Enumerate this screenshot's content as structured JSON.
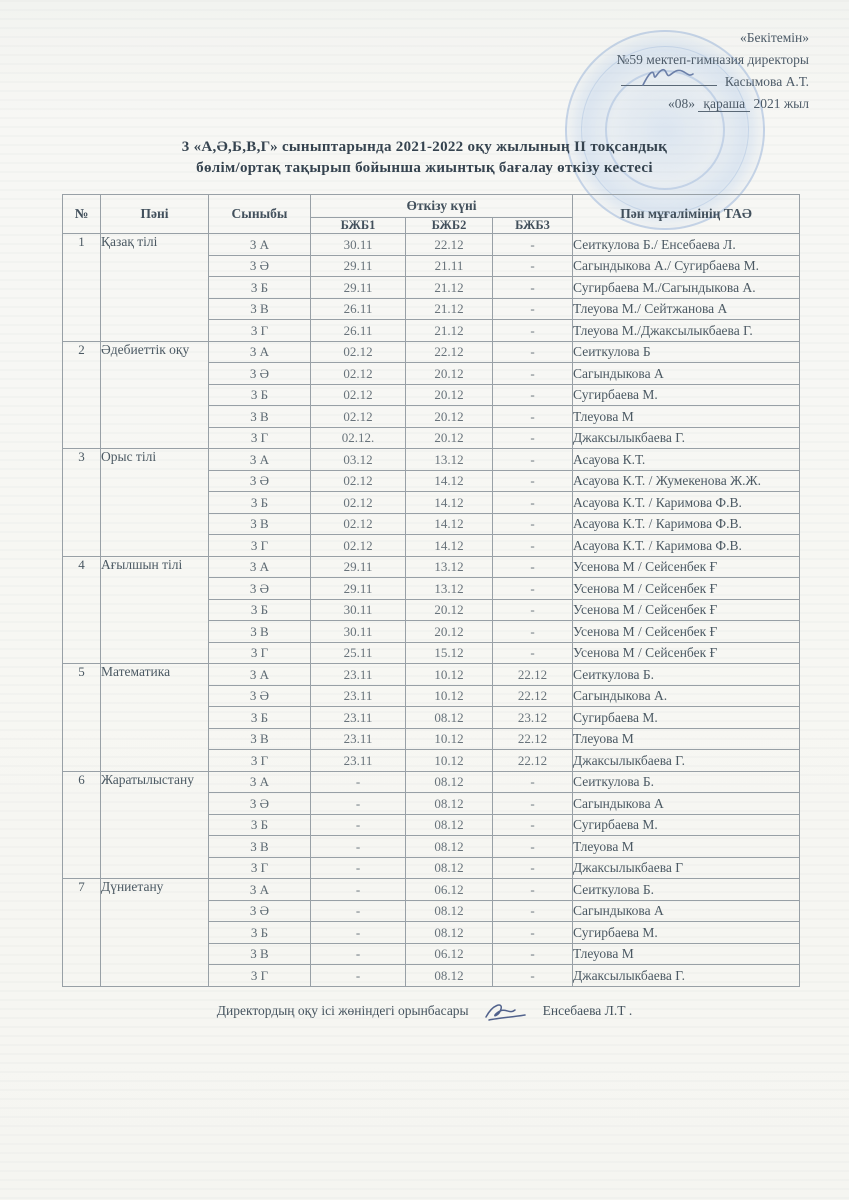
{
  "approval": {
    "line1": "«Бекітемін»",
    "line2": "№59 мектеп-гимназия директоры",
    "director_name": "Касымова А.Т.",
    "date_day": "«08»",
    "date_month": "қараша",
    "date_year": "2021 жыл"
  },
  "title": {
    "line1": "3 «А,Ә,Б,В,Г»  сыныптарында 2021-2022 оқу жылының II тоқсандық",
    "line2": "бөлім/ортақ тақырып бойынша жиынтық бағалау өткізу кестесі"
  },
  "icons": {
    "director_signature": "signature-scribble",
    "deputy_signature": "signature-scribble",
    "stamp": "round-school-stamp"
  },
  "colors": {
    "stamp_blue": "#7c9ed0",
    "ink": "#47545e",
    "border": "#98a0a6"
  },
  "table": {
    "headers": {
      "num": "№",
      "subject": "Пәні",
      "class": "Сыныбы",
      "date_group": "Өткізу күні",
      "bzb1": "БЖБ1",
      "bzb2": "БЖБ2",
      "bzb3": "БЖБ3",
      "teacher": "Пән мұғалімінің ТАӘ"
    },
    "sections": [
      {
        "num": "1",
        "subject": "Қазақ тілі",
        "rows": [
          {
            "class": "3 А",
            "b1": "30.11",
            "b2": "22.12",
            "b3": "-",
            "teacher": "Сеиткулова Б./ Енсебаева Л."
          },
          {
            "class": "3 Ә",
            "b1": "29.11",
            "b2": "21.11",
            "b3": "-",
            "teacher": "Сагындыкова А./ Сугирбаева М."
          },
          {
            "class": "3 Б",
            "b1": "29.11",
            "b2": "21.12",
            "b3": "-",
            "teacher": "Сугирбаева М./Сагындыкова А."
          },
          {
            "class": "3 В",
            "b1": "26.11",
            "b2": "21.12",
            "b3": "-",
            "teacher": "Тлеуова М./ Сейтжанова А"
          },
          {
            "class": "3 Г",
            "b1": "26.11",
            "b2": "21.12",
            "b3": "-",
            "teacher": "Тлеуова М./Джаксылыкбаева Г."
          }
        ]
      },
      {
        "num": "2",
        "subject": "Әдебиеттік оқу",
        "rows": [
          {
            "class": "3 А",
            "b1": "02.12",
            "b2": "22.12",
            "b3": "-",
            "teacher": "Сеиткулова Б"
          },
          {
            "class": "3 Ә",
            "b1": "02.12",
            "b2": "20.12",
            "b3": "-",
            "teacher": "Сагындыкова А"
          },
          {
            "class": "3 Б",
            "b1": "02.12",
            "b2": "20.12",
            "b3": "-",
            "teacher": "Сугирбаева М."
          },
          {
            "class": "3 В",
            "b1": "02.12",
            "b2": "20.12",
            "b3": "-",
            "teacher": "Тлеуова М"
          },
          {
            "class": "3 Г",
            "b1": "02.12.",
            "b2": "20.12",
            "b3": "-",
            "teacher": "Джаксылыкбаева Г."
          }
        ]
      },
      {
        "num": "3",
        "subject": "Орыс тілі",
        "rows": [
          {
            "class": "3 А",
            "b1": "03.12",
            "b2": "13.12",
            "b3": "-",
            "teacher": "Асауова К.Т."
          },
          {
            "class": "3 Ә",
            "b1": "02.12",
            "b2": "14.12",
            "b3": "-",
            "teacher": "Асауова К.Т. / Жумекенова Ж.Ж."
          },
          {
            "class": "3 Б",
            "b1": "02.12",
            "b2": "14.12",
            "b3": "-",
            "teacher": "Асауова К.Т. /  Каримова Ф.В."
          },
          {
            "class": "3 В",
            "b1": "02.12",
            "b2": "14.12",
            "b3": "-",
            "teacher": "Асауова К.Т. /  Каримова Ф.В."
          },
          {
            "class": "3 Г",
            "b1": "02.12",
            "b2": "14.12",
            "b3": "-",
            "teacher": "Асауова К.Т. /  Каримова Ф.В."
          }
        ]
      },
      {
        "num": "4",
        "subject": "Ағылшын тілі",
        "rows": [
          {
            "class": "3 А",
            "b1": "29.11",
            "b2": "13.12",
            "b3": "-",
            "teacher": "Усенова М   /  Сейсенбек Ғ"
          },
          {
            "class": "3 Ә",
            "b1": "29.11",
            "b2": "13.12",
            "b3": "-",
            "teacher": "Усенова М   /  Сейсенбек Ғ"
          },
          {
            "class": "3 Б",
            "b1": "30.11",
            "b2": "20.12",
            "b3": "-",
            "teacher": "Усенова М   /  Сейсенбек Ғ"
          },
          {
            "class": "3 В",
            "b1": "30.11",
            "b2": "20.12",
            "b3": "-",
            "teacher": "Усенова М   /  Сейсенбек Ғ"
          },
          {
            "class": "3 Г",
            "b1": "25.11",
            "b2": "15.12",
            "b3": "-",
            "teacher": "Усенова М   /  Сейсенбек Ғ"
          }
        ]
      },
      {
        "num": "5",
        "subject": "Математика",
        "rows": [
          {
            "class": "3 А",
            "b1": "23.11",
            "b2": "10.12",
            "b3": "22.12",
            "teacher": "Сеиткулова Б."
          },
          {
            "class": "3 Ә",
            "b1": "23.11",
            "b2": "10.12",
            "b3": "22.12",
            "teacher": "Сагындыкова А."
          },
          {
            "class": "3 Б",
            "b1": "23.11",
            "b2": "08.12",
            "b3": "23.12",
            "teacher": "Сугирбаева М."
          },
          {
            "class": "3 В",
            "b1": "23.11",
            "b2": "10.12",
            "b3": "22.12",
            "teacher": "Тлеуова М"
          },
          {
            "class": "3 Г",
            "b1": "23.11",
            "b2": "10.12",
            "b3": "22.12",
            "teacher": "Джаксылыкбаева Г."
          }
        ]
      },
      {
        "num": "6",
        "subject": "Жаратылыстану",
        "rows": [
          {
            "class": "3 А",
            "b1": "-",
            "b2": "08.12",
            "b3": "-",
            "teacher": "Сеиткулова Б."
          },
          {
            "class": "3 Ә",
            "b1": "-",
            "b2": "08.12",
            "b3": "-",
            "teacher": "Сагындыкова А"
          },
          {
            "class": "3 Б",
            "b1": "-",
            "b2": "08.12",
            "b3": "-",
            "teacher": "Сугирбаева М."
          },
          {
            "class": "3 В",
            "b1": "-",
            "b2": "08.12",
            "b3": "-",
            "teacher": "Тлеуова М"
          },
          {
            "class": "3 Г",
            "b1": "-",
            "b2": "08.12",
            "b3": "-",
            "teacher": "Джаксылыкбаева Г"
          }
        ]
      },
      {
        "num": "7",
        "subject": "Дүниетану",
        "rows": [
          {
            "class": "3 А",
            "b1": "-",
            "b2": "06.12",
            "b3": "-",
            "teacher": "Сеиткулова Б."
          },
          {
            "class": "3 Ә",
            "b1": "-",
            "b2": "08.12",
            "b3": "-",
            "teacher": "Сагындыкова А"
          },
          {
            "class": "3 Б",
            "b1": "-",
            "b2": "08.12",
            "b3": "-",
            "teacher": "Сугирбаева М."
          },
          {
            "class": "3 В",
            "b1": "-",
            "b2": "06.12",
            "b3": "-",
            "teacher": "Тлеуова М"
          },
          {
            "class": "3 Г",
            "b1": "-",
            "b2": "08.12",
            "b3": "-",
            "teacher": "Джаксылыкбаева Г."
          }
        ]
      }
    ]
  },
  "footer": {
    "label": "Директордың оқу ісі жөніндегі орынбасары",
    "deputy_name": "Енсебаева Л.Т ."
  }
}
